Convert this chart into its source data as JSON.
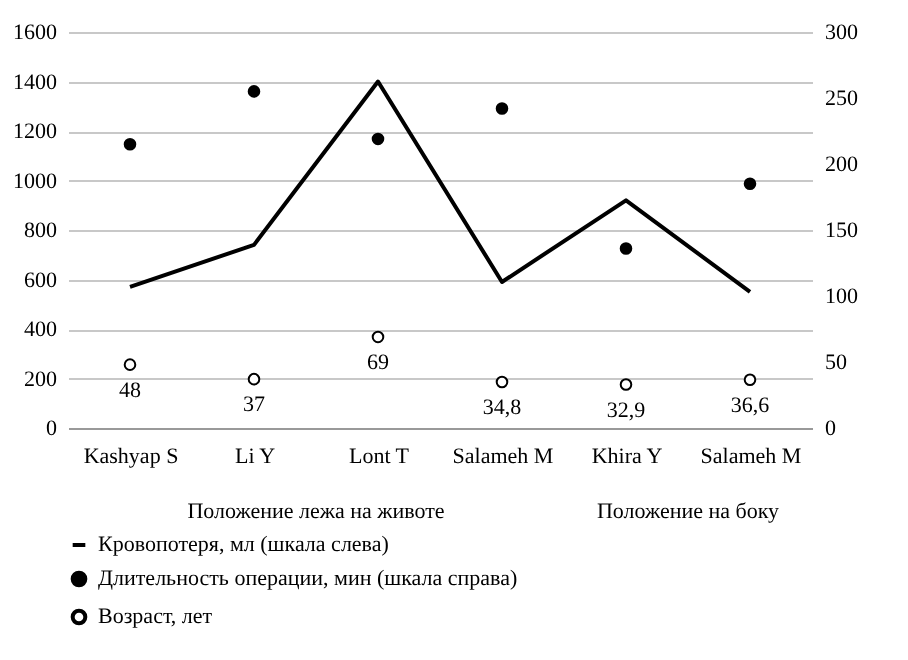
{
  "chart_data": {
    "type": "line",
    "categories": [
      "Kashyap S",
      "Li Y",
      "Lont T",
      "Salameh M",
      "Khira Y",
      "Salameh M"
    ],
    "series": [
      {
        "name": "Кровопотеря, мл (шкала слева)",
        "type": "line",
        "color": "#000000",
        "values": [
          570,
          740,
          1400,
          590,
          920,
          550
        ]
      },
      {
        "name": "Длительность операции, мин (шкала справа)",
        "type": "scatter",
        "axis": "y2",
        "color": "#000000",
        "values": [
          215,
          255,
          219,
          242,
          136,
          185
        ]
      },
      {
        "name": "Возраст, лет",
        "type": "scatter",
        "axis": "y2",
        "color": "#000000",
        "values": [
          48,
          37,
          69,
          34.8,
          32.9,
          36.6
        ],
        "value_labels": [
          "48",
          "37",
          "69",
          "34,8",
          "32,9",
          "36,6"
        ]
      }
    ],
    "annotations": [
      "Положение лежа на животе",
      "Положение на боку"
    ],
    "ylim": [
      0,
      1600
    ],
    "yticks": [
      0,
      200,
      400,
      600,
      800,
      1000,
      1200,
      1400,
      1600
    ],
    "y2lim": [
      0,
      300
    ],
    "y2ticks": [
      0,
      50,
      100,
      150,
      200,
      250,
      300
    ],
    "grid": "y",
    "legend": "bottom"
  }
}
